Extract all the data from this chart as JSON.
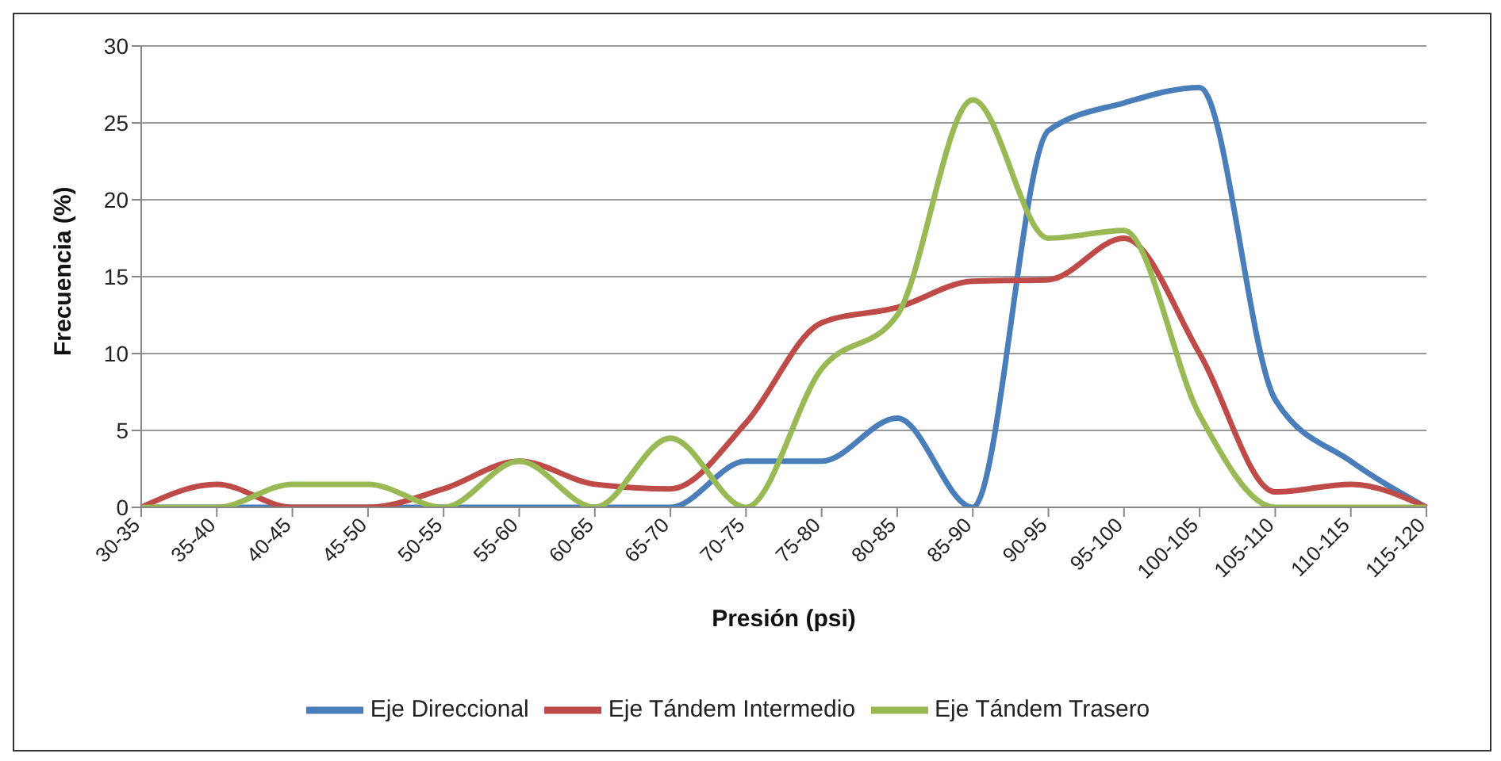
{
  "chart_data": {
    "type": "line",
    "xlabel": "Presión (psi)",
    "ylabel": "Frecuencia (%)",
    "categories": [
      "30-35",
      "35-40",
      "40-45",
      "45-50",
      "50-55",
      "55-60",
      "60-65",
      "65-70",
      "70-75",
      "75-80",
      "80-85",
      "85-90",
      "90-95",
      "95-100",
      "100-105",
      "105-110",
      "110-115",
      "115-120"
    ],
    "series": [
      {
        "name": "Eje Direccional",
        "color": "#4a7ebb",
        "values": [
          0,
          0,
          0,
          0,
          0,
          0,
          0,
          0,
          3,
          3,
          5.8,
          0,
          24.5,
          26.3,
          27.3,
          7,
          3,
          0
        ]
      },
      {
        "name": "Eje Tándem Intermedio",
        "color": "#be4b48",
        "values": [
          0,
          1.5,
          0,
          0,
          1.2,
          3,
          1.5,
          1.2,
          5.5,
          12,
          13,
          14.7,
          14.8,
          17.5,
          10,
          1,
          1.5,
          0
        ]
      },
      {
        "name": "Eje Tándem Trasero",
        "color": "#98b954",
        "values": [
          0,
          0,
          1.5,
          1.5,
          0,
          3,
          0,
          4.5,
          0,
          9,
          12.5,
          26.5,
          17.5,
          18,
          6,
          0,
          0,
          0
        ]
      }
    ],
    "ylim": [
      0,
      30
    ],
    "yticks": [
      0,
      5,
      10,
      15,
      20,
      25,
      30
    ],
    "grid": "y",
    "legend": "bottom",
    "marker": "none",
    "line_style": "solid"
  }
}
